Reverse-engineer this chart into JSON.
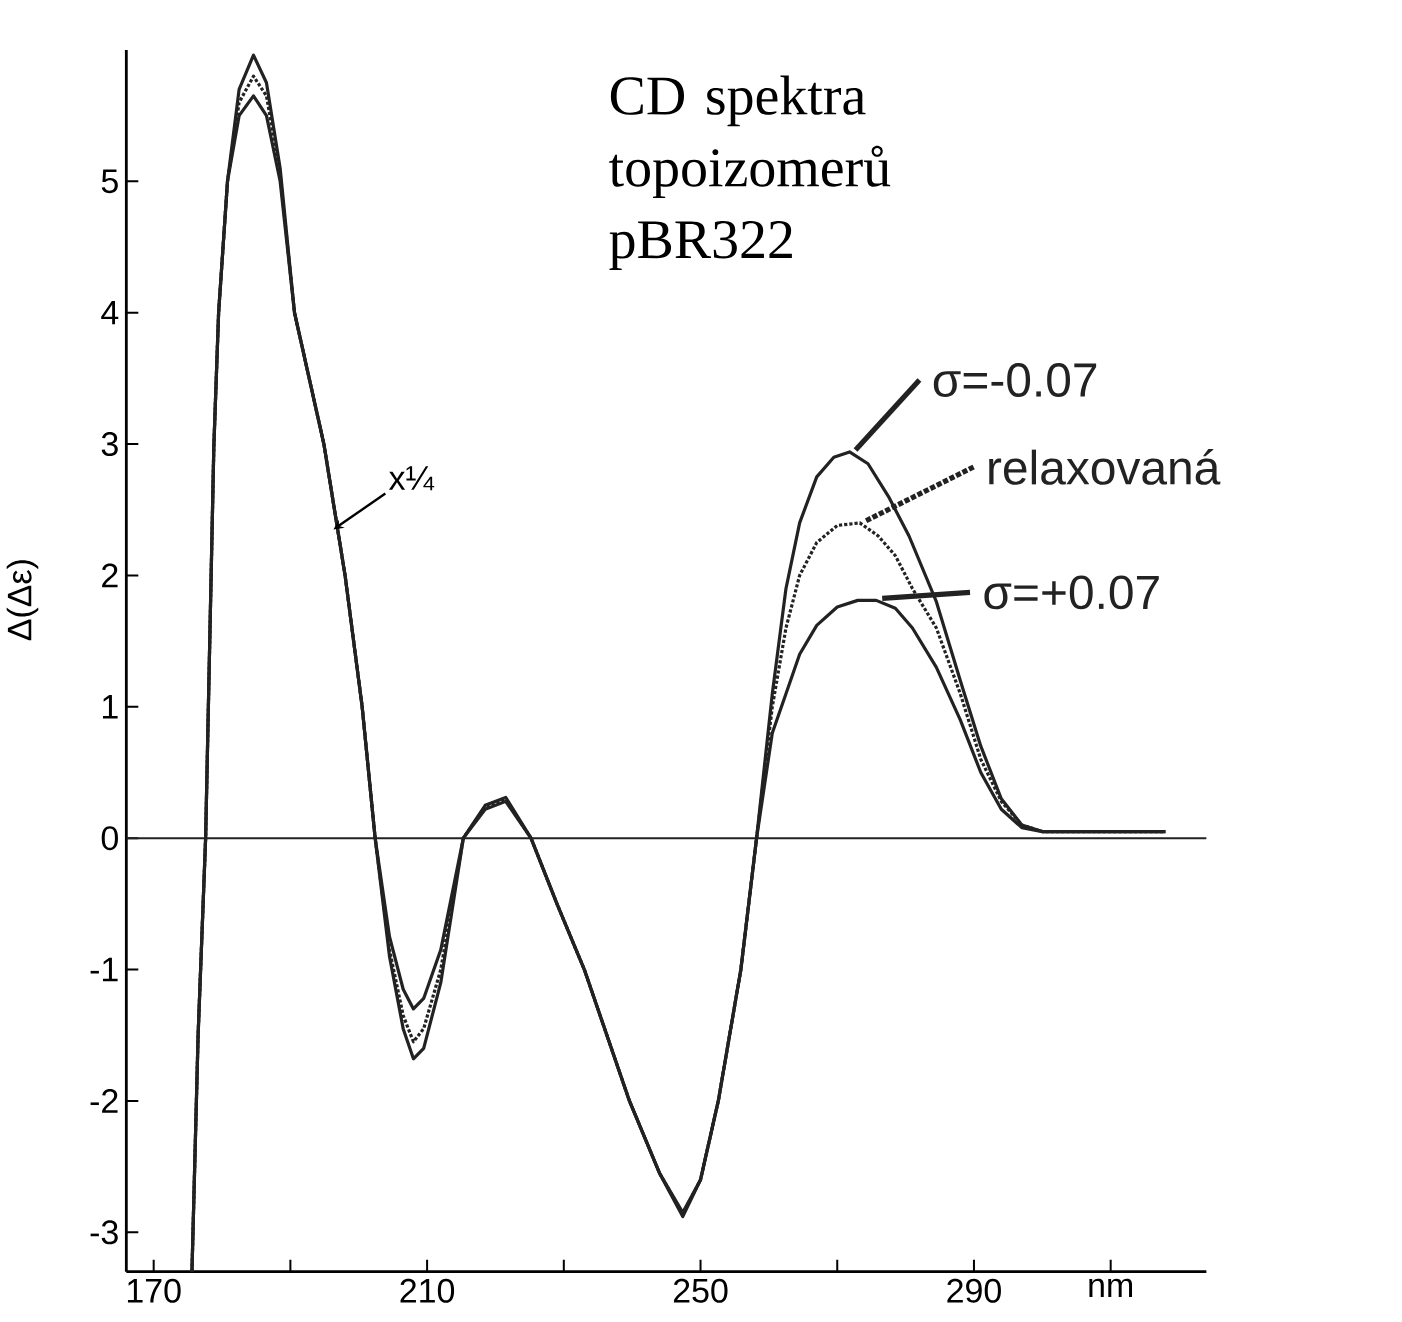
{
  "chart_data": {
    "type": "line",
    "title": "CD spektra topoizomerů pBR322",
    "ylabel": "Δ(Δε)",
    "xlim": [
      166,
      324
    ],
    "ylim": [
      -3.3,
      6.0
    ],
    "xticks": [
      170,
      {
        "value": 190,
        "label": null
      },
      210,
      {
        "value": 230,
        "label": null
      },
      250,
      {
        "value": 270,
        "label": null
      },
      290,
      {
        "value": 310,
        "label": "nm"
      }
    ],
    "yticks": [
      -3,
      -2,
      -1,
      0,
      1,
      2,
      3,
      4,
      5
    ],
    "ref_lines": [
      {
        "axis": "y",
        "value": 0,
        "color": "#222222"
      }
    ],
    "legend": "right",
    "annotations": [
      {
        "text": "x¼",
        "x": 196.3,
        "y": 2.35
      }
    ],
    "series": [
      {
        "name": "σ=-0.07",
        "color": "#222222",
        "line_style": "solid",
        "x": [
          175.6,
          176.5,
          177.6,
          178.8,
          179.5,
          180.8,
          182.5,
          184.6,
          186.5,
          188.5,
          190.6,
          194.9,
          198.0,
          200.5,
          202.4,
          204.5,
          206.5,
          208,
          209.5,
          212,
          215.3,
          218.5,
          221.5,
          225.2,
          229,
          233,
          239.6,
          244,
          247.4,
          250,
          252.6,
          255.9,
          258.2,
          260.5,
          262.5,
          264.5,
          267,
          269.5,
          271.8,
          274.5,
          277.5,
          280.5,
          284.5,
          288,
          291,
          294,
          297,
          300,
          303,
          310,
          318
        ],
        "values": [
          -3.3,
          -1.5,
          0,
          2.98,
          4,
          5,
          5.7,
          5.96,
          5.75,
          5.1,
          4,
          3,
          2,
          1,
          0,
          -0.9,
          -1.45,
          -1.68,
          -1.6,
          -1.1,
          0,
          0.25,
          0.31,
          0,
          -0.5,
          -1,
          -2,
          -2.55,
          -2.88,
          -2.6,
          -2,
          -1,
          0,
          1.1,
          1.9,
          2.4,
          2.75,
          2.9,
          2.94,
          2.85,
          2.6,
          2.3,
          1.8,
          1.2,
          0.7,
          0.3,
          0.1,
          0.05,
          0.05,
          0.05,
          0.05
        ]
      },
      {
        "name": "relaxovaná",
        "color": "#222222",
        "line_style": "dotted",
        "x": [
          175.6,
          176.5,
          177.6,
          178.8,
          179.5,
          180.8,
          182.5,
          184.6,
          186.5,
          188.5,
          190.6,
          194.9,
          198.0,
          200.5,
          202.4,
          204.5,
          206.5,
          208,
          209.5,
          212,
          215.3,
          218.5,
          221.5,
          225.2,
          229,
          233,
          239.6,
          244,
          247.4,
          250,
          252.6,
          255.9,
          258.2,
          260.5,
          262.5,
          264.5,
          267,
          270,
          273.3,
          276,
          278.5,
          281,
          284.5,
          288,
          291,
          294,
          297,
          300,
          303,
          310,
          318
        ],
        "values": [
          -3.3,
          -1.5,
          0,
          2.98,
          4,
          5,
          5.6,
          5.8,
          5.65,
          5.05,
          4,
          3,
          2,
          1,
          0,
          -0.85,
          -1.35,
          -1.55,
          -1.45,
          -1.0,
          0,
          0.24,
          0.29,
          0,
          -0.5,
          -1,
          -2,
          -2.55,
          -2.86,
          -2.6,
          -2,
          -1,
          0,
          1.0,
          1.6,
          2.0,
          2.25,
          2.38,
          2.4,
          2.3,
          2.15,
          1.9,
          1.6,
          1.1,
          0.6,
          0.28,
          0.1,
          0.05,
          0.05,
          0.05,
          0.05
        ]
      },
      {
        "name": "σ=+0.07",
        "color": "#222222",
        "line_style": "solid",
        "x": [
          175.6,
          176.5,
          177.6,
          178.8,
          179.5,
          180.8,
          182.5,
          184.6,
          186.5,
          188.5,
          190.6,
          194.9,
          198.0,
          200.5,
          202.4,
          204.5,
          206.5,
          208,
          209.5,
          212,
          215.3,
          218.5,
          221.5,
          225.2,
          229,
          233,
          239.6,
          244,
          247.4,
          250,
          252.6,
          255.9,
          258.2,
          260.5,
          262.5,
          264.5,
          267,
          270,
          273,
          275.7,
          278.5,
          281,
          284.5,
          288,
          291,
          294,
          297,
          300,
          303,
          310,
          318
        ],
        "values": [
          -3.3,
          -1.5,
          0,
          2.98,
          4,
          5,
          5.5,
          5.65,
          5.5,
          5.0,
          4,
          3,
          2,
          1,
          0,
          -0.75,
          -1.15,
          -1.3,
          -1.22,
          -0.85,
          0,
          0.22,
          0.28,
          0,
          -0.5,
          -1,
          -2,
          -2.55,
          -2.85,
          -2.6,
          -2,
          -1,
          0,
          0.8,
          1.1,
          1.4,
          1.62,
          1.76,
          1.81,
          1.81,
          1.75,
          1.6,
          1.3,
          0.9,
          0.5,
          0.22,
          0.08,
          0.05,
          0.05,
          0.05,
          0.05
        ]
      }
    ]
  }
}
